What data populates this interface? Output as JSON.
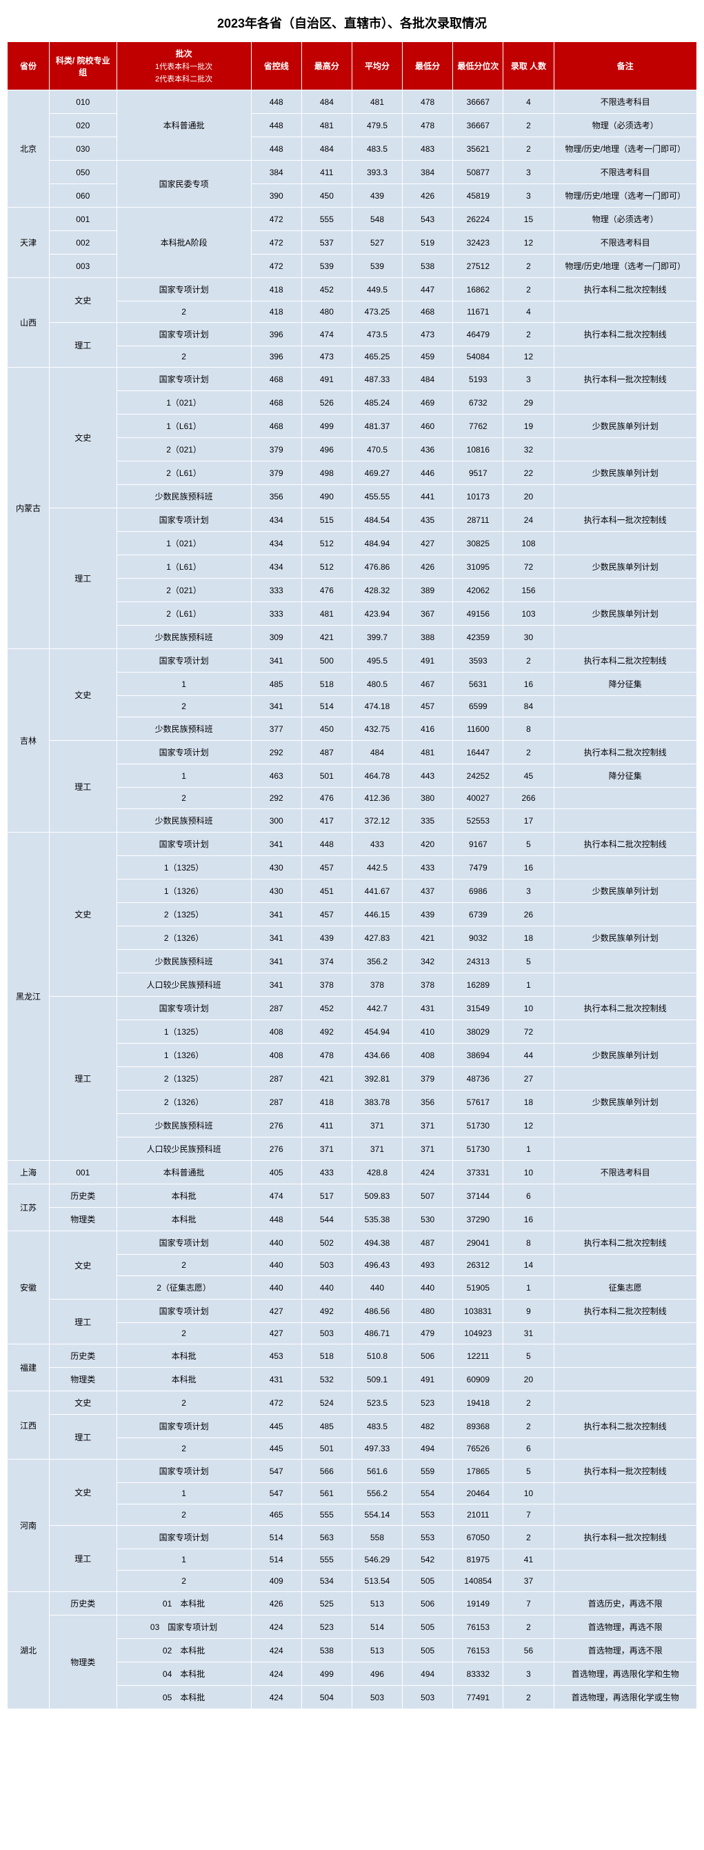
{
  "title": "2023年各省（自治区、直辖市）、各批次录取情况",
  "headers": {
    "province": "省份",
    "category": "科类/\n院校专业组",
    "batch": "批次",
    "batch_sub1": "1代表本科一批次",
    "batch_sub2": "2代表本科二批次",
    "ctrl": "省控线",
    "max": "最高分",
    "avg": "平均分",
    "min": "最低分",
    "rank": "最低分位次",
    "count": "录取\n人数",
    "note": "备注"
  },
  "rows": [
    {
      "p": "北京",
      "pr": 5,
      "c": "010",
      "cr": 1,
      "b": "本科普通批",
      "br": 3,
      "v": [
        "448",
        "484",
        "481",
        "478",
        "36667",
        "4",
        "不限选考科目"
      ]
    },
    {
      "c": "020",
      "cr": 1,
      "v": [
        "448",
        "481",
        "479.5",
        "478",
        "36667",
        "2",
        "物理（必须选考）"
      ]
    },
    {
      "c": "030",
      "cr": 1,
      "v": [
        "448",
        "484",
        "483.5",
        "483",
        "35621",
        "2",
        "物理/历史/地理（选考一门即可）"
      ]
    },
    {
      "c": "050",
      "cr": 1,
      "b": "国家民委专项",
      "br": 2,
      "v": [
        "384",
        "411",
        "393.3",
        "384",
        "50877",
        "3",
        "不限选考科目"
      ]
    },
    {
      "c": "060",
      "cr": 1,
      "v": [
        "390",
        "450",
        "439",
        "426",
        "45819",
        "3",
        "物理/历史/地理（选考一门即可）"
      ]
    },
    {
      "p": "天津",
      "pr": 3,
      "c": "001",
      "cr": 1,
      "b": "本科批A阶段",
      "br": 3,
      "v": [
        "472",
        "555",
        "548",
        "543",
        "26224",
        "15",
        "物理（必须选考）"
      ]
    },
    {
      "c": "002",
      "cr": 1,
      "v": [
        "472",
        "537",
        "527",
        "519",
        "32423",
        "12",
        "不限选考科目"
      ]
    },
    {
      "c": "003",
      "cr": 1,
      "v": [
        "472",
        "539",
        "539",
        "538",
        "27512",
        "2",
        "物理/历史/地理（选考一门即可）"
      ]
    },
    {
      "p": "山西",
      "pr": 4,
      "c": "文史",
      "cr": 2,
      "b": "国家专项计划",
      "br": 1,
      "v": [
        "418",
        "452",
        "449.5",
        "447",
        "16862",
        "2",
        "执行本科二批次控制线"
      ]
    },
    {
      "b": "2",
      "br": 1,
      "v": [
        "418",
        "480",
        "473.25",
        "468",
        "11671",
        "4",
        ""
      ]
    },
    {
      "c": "理工",
      "cr": 2,
      "b": "国家专项计划",
      "br": 1,
      "v": [
        "396",
        "474",
        "473.5",
        "473",
        "46479",
        "2",
        "执行本科二批次控制线"
      ]
    },
    {
      "b": "2",
      "br": 1,
      "v": [
        "396",
        "473",
        "465.25",
        "459",
        "54084",
        "12",
        ""
      ]
    },
    {
      "p": "内蒙古",
      "pr": 12,
      "c": "文史",
      "cr": 6,
      "b": "国家专项计划",
      "br": 1,
      "v": [
        "468",
        "491",
        "487.33",
        "484",
        "5193",
        "3",
        "执行本科一批次控制线"
      ]
    },
    {
      "b": "1（021）",
      "br": 1,
      "v": [
        "468",
        "526",
        "485.24",
        "469",
        "6732",
        "29",
        ""
      ]
    },
    {
      "b": "1（L61）",
      "br": 1,
      "v": [
        "468",
        "499",
        "481.37",
        "460",
        "7762",
        "19",
        "少数民族单列计划"
      ]
    },
    {
      "b": "2（021）",
      "br": 1,
      "v": [
        "379",
        "496",
        "470.5",
        "436",
        "10816",
        "32",
        ""
      ]
    },
    {
      "b": "2（L61）",
      "br": 1,
      "v": [
        "379",
        "498",
        "469.27",
        "446",
        "9517",
        "22",
        "少数民族单列计划"
      ]
    },
    {
      "b": "少数民族预科班",
      "br": 1,
      "v": [
        "356",
        "490",
        "455.55",
        "441",
        "10173",
        "20",
        ""
      ]
    },
    {
      "c": "理工",
      "cr": 6,
      "b": "国家专项计划",
      "br": 1,
      "v": [
        "434",
        "515",
        "484.54",
        "435",
        "28711",
        "24",
        "执行本科一批次控制线"
      ]
    },
    {
      "b": "1（021）",
      "br": 1,
      "v": [
        "434",
        "512",
        "484.94",
        "427",
        "30825",
        "108",
        ""
      ]
    },
    {
      "b": "1（L61）",
      "br": 1,
      "v": [
        "434",
        "512",
        "476.86",
        "426",
        "31095",
        "72",
        "少数民族单列计划"
      ]
    },
    {
      "b": "2（021）",
      "br": 1,
      "v": [
        "333",
        "476",
        "428.32",
        "389",
        "42062",
        "156",
        ""
      ]
    },
    {
      "b": "2（L61）",
      "br": 1,
      "v": [
        "333",
        "481",
        "423.94",
        "367",
        "49156",
        "103",
        "少数民族单列计划"
      ]
    },
    {
      "b": "少数民族预科班",
      "br": 1,
      "v": [
        "309",
        "421",
        "399.7",
        "388",
        "42359",
        "30",
        ""
      ]
    },
    {
      "p": "吉林",
      "pr": 8,
      "c": "文史",
      "cr": 4,
      "b": "国家专项计划",
      "br": 1,
      "v": [
        "341",
        "500",
        "495.5",
        "491",
        "3593",
        "2",
        "执行本科二批次控制线"
      ]
    },
    {
      "b": "1",
      "br": 1,
      "v": [
        "485",
        "518",
        "480.5",
        "467",
        "5631",
        "16",
        "降分征集"
      ]
    },
    {
      "b": "2",
      "br": 1,
      "v": [
        "341",
        "514",
        "474.18",
        "457",
        "6599",
        "84",
        ""
      ]
    },
    {
      "b": "少数民族预科班",
      "br": 1,
      "v": [
        "377",
        "450",
        "432.75",
        "416",
        "11600",
        "8",
        ""
      ]
    },
    {
      "c": "理工",
      "cr": 4,
      "b": "国家专项计划",
      "br": 1,
      "v": [
        "292",
        "487",
        "484",
        "481",
        "16447",
        "2",
        "执行本科二批次控制线"
      ]
    },
    {
      "b": "1",
      "br": 1,
      "v": [
        "463",
        "501",
        "464.78",
        "443",
        "24252",
        "45",
        "降分征集"
      ]
    },
    {
      "b": "2",
      "br": 1,
      "v": [
        "292",
        "476",
        "412.36",
        "380",
        "40027",
        "266",
        ""
      ]
    },
    {
      "b": "少数民族预科班",
      "br": 1,
      "v": [
        "300",
        "417",
        "372.12",
        "335",
        "52553",
        "17",
        ""
      ]
    },
    {
      "p": "黑龙江",
      "pr": 14,
      "c": "文史",
      "cr": 7,
      "b": "国家专项计划",
      "br": 1,
      "v": [
        "341",
        "448",
        "433",
        "420",
        "9167",
        "5",
        "执行本科二批次控制线"
      ]
    },
    {
      "b": "1（1325）",
      "br": 1,
      "v": [
        "430",
        "457",
        "442.5",
        "433",
        "7479",
        "16",
        ""
      ]
    },
    {
      "b": "1（1326）",
      "br": 1,
      "v": [
        "430",
        "451",
        "441.67",
        "437",
        "6986",
        "3",
        "少数民族单列计划"
      ]
    },
    {
      "b": "2（1325）",
      "br": 1,
      "v": [
        "341",
        "457",
        "446.15",
        "439",
        "6739",
        "26",
        ""
      ]
    },
    {
      "b": "2（1326）",
      "br": 1,
      "v": [
        "341",
        "439",
        "427.83",
        "421",
        "9032",
        "18",
        "少数民族单列计划"
      ]
    },
    {
      "b": "少数民族预科班",
      "br": 1,
      "v": [
        "341",
        "374",
        "356.2",
        "342",
        "24313",
        "5",
        ""
      ]
    },
    {
      "b": "人口较少民族预科班",
      "br": 1,
      "v": [
        "341",
        "378",
        "378",
        "378",
        "16289",
        "1",
        ""
      ]
    },
    {
      "c": "理工",
      "cr": 7,
      "b": "国家专项计划",
      "br": 1,
      "v": [
        "287",
        "452",
        "442.7",
        "431",
        "31549",
        "10",
        "执行本科二批次控制线"
      ]
    },
    {
      "b": "1（1325）",
      "br": 1,
      "v": [
        "408",
        "492",
        "454.94",
        "410",
        "38029",
        "72",
        ""
      ]
    },
    {
      "b": "1（1326）",
      "br": 1,
      "v": [
        "408",
        "478",
        "434.66",
        "408",
        "38694",
        "44",
        "少数民族单列计划"
      ]
    },
    {
      "b": "2（1325）",
      "br": 1,
      "v": [
        "287",
        "421",
        "392.81",
        "379",
        "48736",
        "27",
        ""
      ]
    },
    {
      "b": "2（1326）",
      "br": 1,
      "v": [
        "287",
        "418",
        "383.78",
        "356",
        "57617",
        "18",
        "少数民族单列计划"
      ]
    },
    {
      "b": "少数民族预科班",
      "br": 1,
      "v": [
        "276",
        "411",
        "371",
        "371",
        "51730",
        "12",
        ""
      ]
    },
    {
      "b": "人口较少民族预科班",
      "br": 1,
      "v": [
        "276",
        "371",
        "371",
        "371",
        "51730",
        "1",
        ""
      ]
    },
    {
      "p": "上海",
      "pr": 1,
      "c": "001",
      "cr": 1,
      "b": "本科普通批",
      "br": 1,
      "v": [
        "405",
        "433",
        "428.8",
        "424",
        "37331",
        "10",
        "不限选考科目"
      ]
    },
    {
      "p": "江苏",
      "pr": 2,
      "c": "历史类",
      "cr": 1,
      "b": "本科批",
      "br": 1,
      "v": [
        "474",
        "517",
        "509.83",
        "507",
        "37144",
        "6",
        ""
      ]
    },
    {
      "c": "物理类",
      "cr": 1,
      "b": "本科批",
      "br": 1,
      "v": [
        "448",
        "544",
        "535.38",
        "530",
        "37290",
        "16",
        ""
      ]
    },
    {
      "p": "安徽",
      "pr": 5,
      "c": "文史",
      "cr": 3,
      "b": "国家专项计划",
      "br": 1,
      "v": [
        "440",
        "502",
        "494.38",
        "487",
        "29041",
        "8",
        "执行本科二批次控制线"
      ]
    },
    {
      "b": "2",
      "br": 1,
      "v": [
        "440",
        "503",
        "496.43",
        "493",
        "26312",
        "14",
        ""
      ]
    },
    {
      "b": "2（征集志愿）",
      "br": 1,
      "v": [
        "440",
        "440",
        "440",
        "440",
        "51905",
        "1",
        "征集志愿"
      ]
    },
    {
      "c": "理工",
      "cr": 2,
      "b": "国家专项计划",
      "br": 1,
      "v": [
        "427",
        "492",
        "486.56",
        "480",
        "103831",
        "9",
        "执行本科二批次控制线"
      ]
    },
    {
      "b": "2",
      "br": 1,
      "v": [
        "427",
        "503",
        "486.71",
        "479",
        "104923",
        "31",
        ""
      ]
    },
    {
      "p": "福建",
      "pr": 2,
      "c": "历史类",
      "cr": 1,
      "b": "本科批",
      "br": 1,
      "v": [
        "453",
        "518",
        "510.8",
        "506",
        "12211",
        "5",
        ""
      ]
    },
    {
      "c": "物理类",
      "cr": 1,
      "b": "本科批",
      "br": 1,
      "v": [
        "431",
        "532",
        "509.1",
        "491",
        "60909",
        "20",
        ""
      ]
    },
    {
      "p": "江西",
      "pr": 3,
      "c": "文史",
      "cr": 1,
      "b": "2",
      "br": 1,
      "v": [
        "472",
        "524",
        "523.5",
        "523",
        "19418",
        "2",
        ""
      ]
    },
    {
      "c": "理工",
      "cr": 2,
      "b": "国家专项计划",
      "br": 1,
      "v": [
        "445",
        "485",
        "483.5",
        "482",
        "89368",
        "2",
        "执行本科二批次控制线"
      ]
    },
    {
      "b": "2",
      "br": 1,
      "v": [
        "445",
        "501",
        "497.33",
        "494",
        "76526",
        "6",
        ""
      ]
    },
    {
      "p": "河南",
      "pr": 6,
      "c": "文史",
      "cr": 3,
      "b": "国家专项计划",
      "br": 1,
      "v": [
        "547",
        "566",
        "561.6",
        "559",
        "17865",
        "5",
        "执行本科一批次控制线"
      ]
    },
    {
      "b": "1",
      "br": 1,
      "v": [
        "547",
        "561",
        "556.2",
        "554",
        "20464",
        "10",
        ""
      ]
    },
    {
      "b": "2",
      "br": 1,
      "v": [
        "465",
        "555",
        "554.14",
        "553",
        "21011",
        "7",
        ""
      ]
    },
    {
      "c": "理工",
      "cr": 3,
      "b": "国家专项计划",
      "br": 1,
      "v": [
        "514",
        "563",
        "558",
        "553",
        "67050",
        "2",
        "执行本科一批次控制线"
      ]
    },
    {
      "b": "1",
      "br": 1,
      "v": [
        "514",
        "555",
        "546.29",
        "542",
        "81975",
        "41",
        ""
      ]
    },
    {
      "b": "2",
      "br": 1,
      "v": [
        "409",
        "534",
        "513.54",
        "505",
        "140854",
        "37",
        ""
      ]
    },
    {
      "p": "湖北",
      "pr": 5,
      "c": "历史类",
      "cr": 1,
      "b": "01",
      "bb": "本科批",
      "br": 1,
      "v": [
        "426",
        "525",
        "513",
        "506",
        "19149",
        "7",
        "首选历史，再选不限"
      ]
    },
    {
      "c": "物理类",
      "cr": 4,
      "b": "03",
      "bb": "国家专项计划",
      "br": 1,
      "v": [
        "424",
        "523",
        "514",
        "505",
        "76153",
        "2",
        "首选物理，再选不限"
      ]
    },
    {
      "b": "02",
      "bb": "本科批",
      "br": 1,
      "v": [
        "424",
        "538",
        "513",
        "505",
        "76153",
        "56",
        "首选物理，再选不限"
      ]
    },
    {
      "b": "04",
      "bb": "本科批",
      "br": 1,
      "v": [
        "424",
        "499",
        "496",
        "494",
        "83332",
        "3",
        "首选物理，再选限化学和生物"
      ]
    },
    {
      "b": "05",
      "bb": "本科批",
      "br": 1,
      "v": [
        "424",
        "504",
        "503",
        "503",
        "77491",
        "2",
        "首选物理，再选限化学或生物"
      ]
    }
  ]
}
